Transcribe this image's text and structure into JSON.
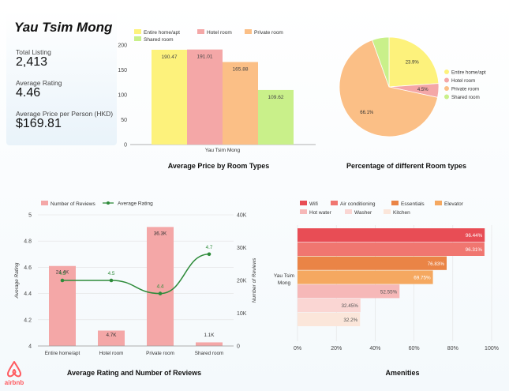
{
  "kpi": {
    "title": "Yau Tsim Mong",
    "total_listing_label": "Total Listing",
    "total_listing_value": "2,413",
    "avg_rating_label": "Average Rating",
    "avg_rating_value": "4.46",
    "avg_price_label": "Average Price per Person (HKD)",
    "avg_price_value": "$169.81"
  },
  "brand": {
    "logo_text": "airbnb",
    "color": "#ff5a5f"
  },
  "chart_data": [
    {
      "id": "price-by-room",
      "type": "bar",
      "title": "Average Price by Room Types",
      "categories": [
        "Yau Tsim Mong"
      ],
      "series": [
        {
          "name": "Entire home/apt",
          "values": [
            190.47
          ],
          "label": "190.47",
          "color": "#fdf27c"
        },
        {
          "name": "Hotel room",
          "values": [
            191.01
          ],
          "label": "191.01",
          "color": "#f4a7a7"
        },
        {
          "name": "Private room",
          "values": [
            165.88
          ],
          "label": "165.88",
          "color": "#fbbf86"
        },
        {
          "name": "Shared room",
          "values": [
            109.62
          ],
          "label": "109.62",
          "color": "#c9f08a"
        }
      ],
      "yticks": [
        0,
        50,
        100,
        150,
        200
      ],
      "ylim": [
        0,
        200
      ],
      "legend": "top"
    },
    {
      "id": "room-share",
      "type": "pie",
      "title": "Percentage of different Room types",
      "slices": [
        {
          "name": "Entire home/apt",
          "value": 23.9,
          "label": "23.9%",
          "color": "#fdf27c"
        },
        {
          "name": "Hotel room",
          "value": 4.5,
          "label": "4.5%",
          "color": "#f4a7a7"
        },
        {
          "name": "Private room",
          "value": 66.1,
          "label": "66.1%",
          "color": "#fbbf86"
        },
        {
          "name": "Shared room",
          "value": 5.5,
          "label": "",
          "color": "#c9f08a"
        }
      ],
      "legend": "right"
    },
    {
      "id": "rating-reviews",
      "type": "bar",
      "title": "Average Rating and Number of Reviews",
      "categories": [
        "Entire home/apt",
        "Hotel room",
        "Private room",
        "Shared room"
      ],
      "series": [
        {
          "name": "Number of Reviews",
          "type": "bar",
          "axis": "right",
          "values": [
            24400,
            4700,
            36300,
            1100
          ],
          "labels": [
            "24.4K",
            "4.7K",
            "36.3K",
            "1.1K"
          ],
          "color": "#f4a7a7"
        },
        {
          "name": "Average Rating",
          "type": "line",
          "axis": "left",
          "values": [
            4.5,
            4.5,
            4.4,
            4.7
          ],
          "labels": [
            "4.5",
            "4.5",
            "4.4",
            "4.7"
          ],
          "color": "#2e8b3a"
        }
      ],
      "ylabel": "Average Rating",
      "ylabel_right": "Number of Reviews",
      "ylim": [
        4,
        5
      ],
      "yticks": [
        "4",
        "4.2",
        "4.4",
        "4.6",
        "4.8",
        "5"
      ],
      "ylim_right": [
        0,
        40000
      ],
      "yticks_right": [
        "0",
        "10K",
        "20K",
        "30K",
        "40K"
      ],
      "legend": "top"
    },
    {
      "id": "amenities",
      "type": "bar",
      "orientation": "horizontal",
      "title": "Amenities",
      "categories": [
        "Yau Tsim Mong"
      ],
      "series": [
        {
          "name": "Wifi",
          "values": [
            96.44
          ],
          "label": "96.44%",
          "color": "#e84d55"
        },
        {
          "name": "Air conditioning",
          "values": [
            96.31
          ],
          "label": "96.31%",
          "color": "#f07670"
        },
        {
          "name": "Essentials",
          "values": [
            76.83
          ],
          "label": "76.83%",
          "color": "#ea8446"
        },
        {
          "name": "Elevator",
          "values": [
            69.75
          ],
          "label": "69.75%",
          "color": "#f5a860"
        },
        {
          "name": "Hot water",
          "values": [
            52.55
          ],
          "label": "52.55%",
          "color": "#f6b8b8"
        },
        {
          "name": "Washer",
          "values": [
            32.45
          ],
          "label": "32.45%",
          "color": "#fad6d3"
        },
        {
          "name": "Kitchen",
          "values": [
            32.2
          ],
          "label": "32.2%",
          "color": "#fbe6da"
        }
      ],
      "xticks": [
        "0%",
        "20%",
        "40%",
        "60%",
        "80%",
        "100%"
      ],
      "xlim": [
        0,
        100
      ],
      "legend": "top"
    }
  ]
}
